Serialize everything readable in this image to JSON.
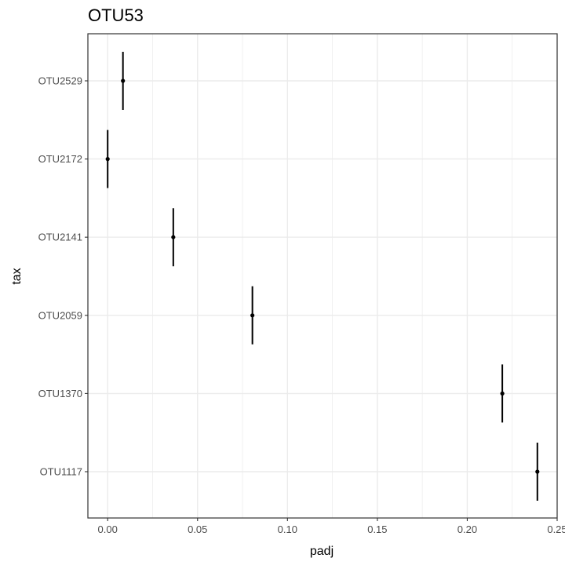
{
  "chart_data": {
    "type": "scatter",
    "title": "OTU53",
    "xlabel": "padj",
    "ylabel": "tax",
    "xlim": [
      -0.011,
      0.25
    ],
    "x_ticks": [
      0.0,
      0.05,
      0.1,
      0.15,
      0.2,
      0.25
    ],
    "x_tick_labels": [
      "0.00",
      "0.05",
      "0.10",
      "0.15",
      "0.20",
      "0.25"
    ],
    "categories": [
      "OTU1117",
      "OTU1370",
      "OTU2059",
      "OTU2141",
      "OTU2172",
      "OTU2529"
    ],
    "points": [
      {
        "category": "OTU2529",
        "x": 0.0085
      },
      {
        "category": "OTU2172",
        "x": 0.0
      },
      {
        "category": "OTU2141",
        "x": 0.0365
      },
      {
        "category": "OTU2059",
        "x": 0.0805
      },
      {
        "category": "OTU1370",
        "x": 0.2195
      },
      {
        "category": "OTU1117",
        "x": 0.239
      }
    ],
    "grid": true,
    "legend": "none",
    "colors": {
      "point": "#000000",
      "grid": "#ebebeb",
      "panel_border": "#333333"
    }
  }
}
